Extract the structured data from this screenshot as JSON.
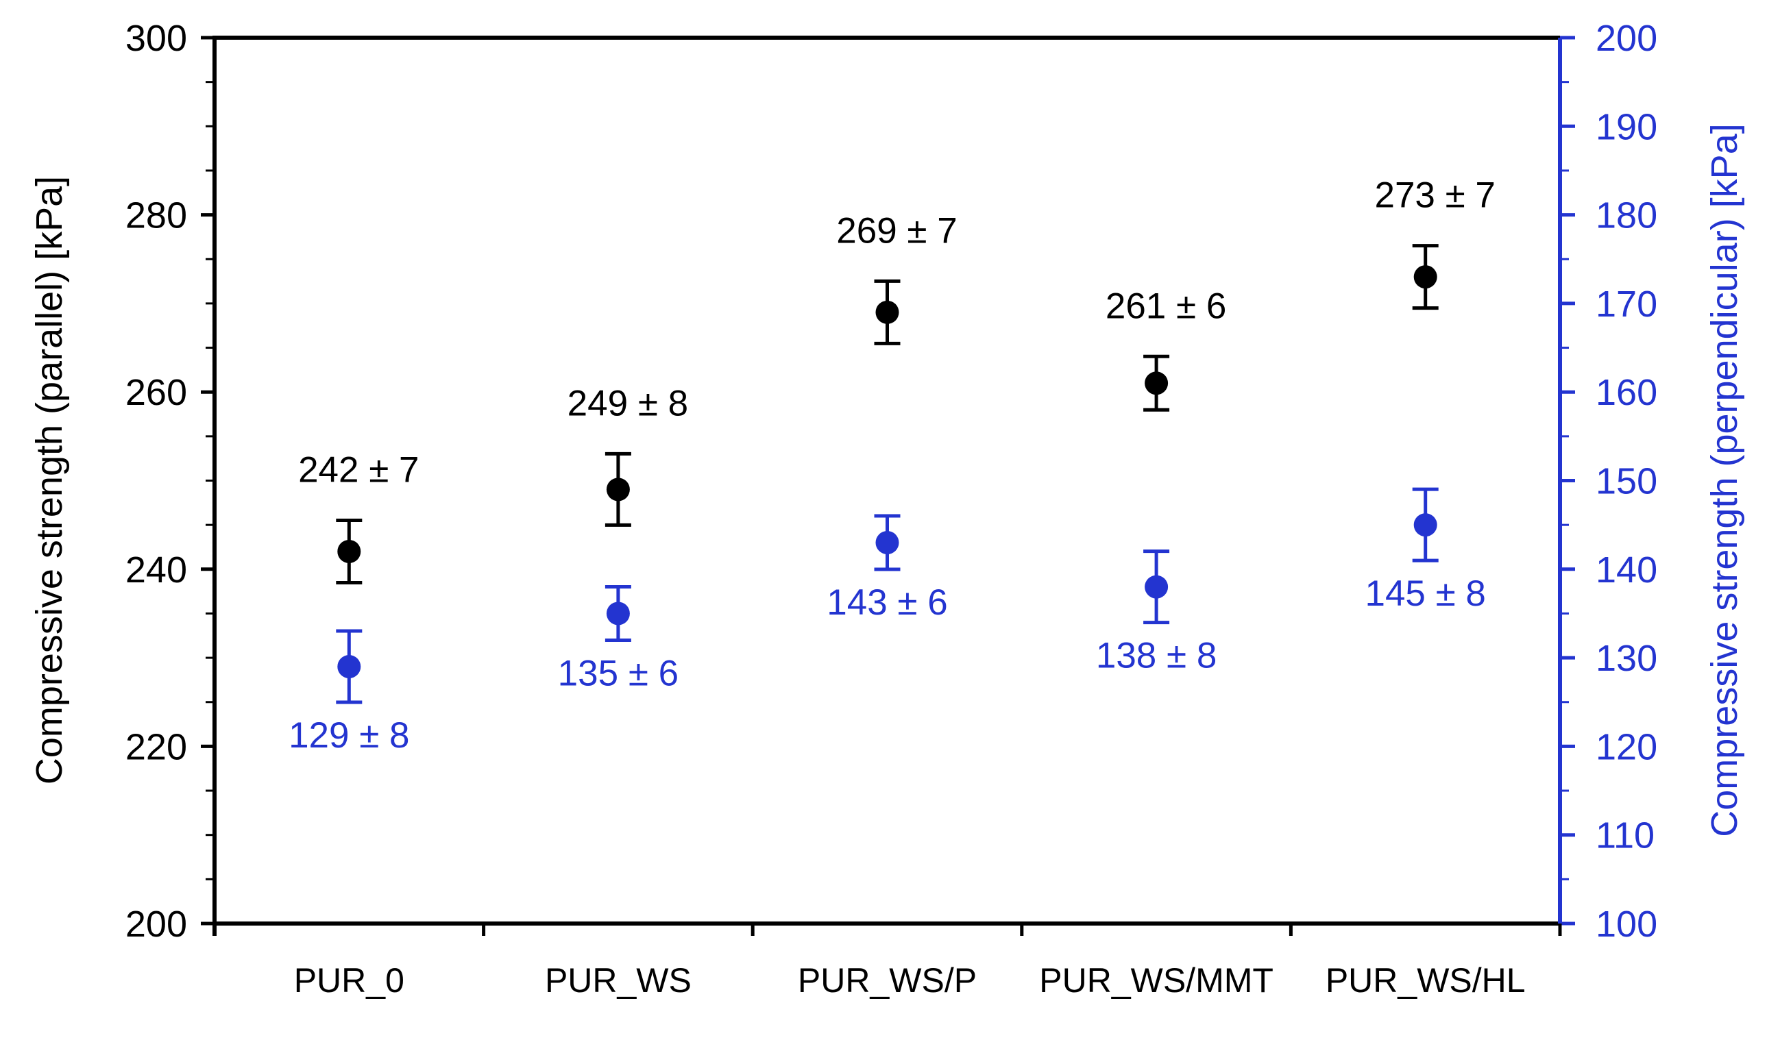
{
  "chart_data": {
    "type": "scatter",
    "title": "",
    "categories": [
      "PUR_0",
      "PUR_WS",
      "PUR_WS/P",
      "PUR_WS/MMT",
      "PUR_WS/HL"
    ],
    "series": [
      {
        "name": "Compressive strength (parallel)",
        "axis": "left",
        "color": "#000000",
        "marker": "circle",
        "values": [
          242,
          249,
          269,
          261,
          273
        ],
        "errors": [
          7,
          8,
          7,
          6,
          7
        ],
        "labels": [
          "242 ± 7",
          "249 ± 8",
          "269 ± 7",
          "261 ± 6",
          "273 ± 7"
        ],
        "label_position": "above"
      },
      {
        "name": "Compressive strength (perpendicular)",
        "axis": "right",
        "color": "#2334d0",
        "marker": "circle",
        "values": [
          129,
          135,
          143,
          138,
          145
        ],
        "errors": [
          8,
          6,
          6,
          8,
          8
        ],
        "labels": [
          "129 ± 8",
          "135 ± 6",
          "143 ± 6",
          "138 ± 8",
          "145 ± 8"
        ],
        "label_position": "below"
      }
    ],
    "left_axis": {
      "title": "Compressive strength (parallel) [kPa]",
      "min": 200,
      "max": 300,
      "major_step": 20,
      "minor_step": 5,
      "tick_labels": [
        "200",
        "220",
        "240",
        "260",
        "280",
        "300"
      ],
      "color": "#000000"
    },
    "right_axis": {
      "title": "Compressive strength (perpendicular) [kPa]",
      "min": 100,
      "max": 200,
      "major_step": 10,
      "minor_step": 5,
      "tick_labels": [
        "100",
        "110",
        "120",
        "130",
        "140",
        "150",
        "160",
        "170",
        "180",
        "190",
        "200"
      ],
      "color": "#2334d0"
    },
    "grid": false,
    "legend": "none"
  }
}
